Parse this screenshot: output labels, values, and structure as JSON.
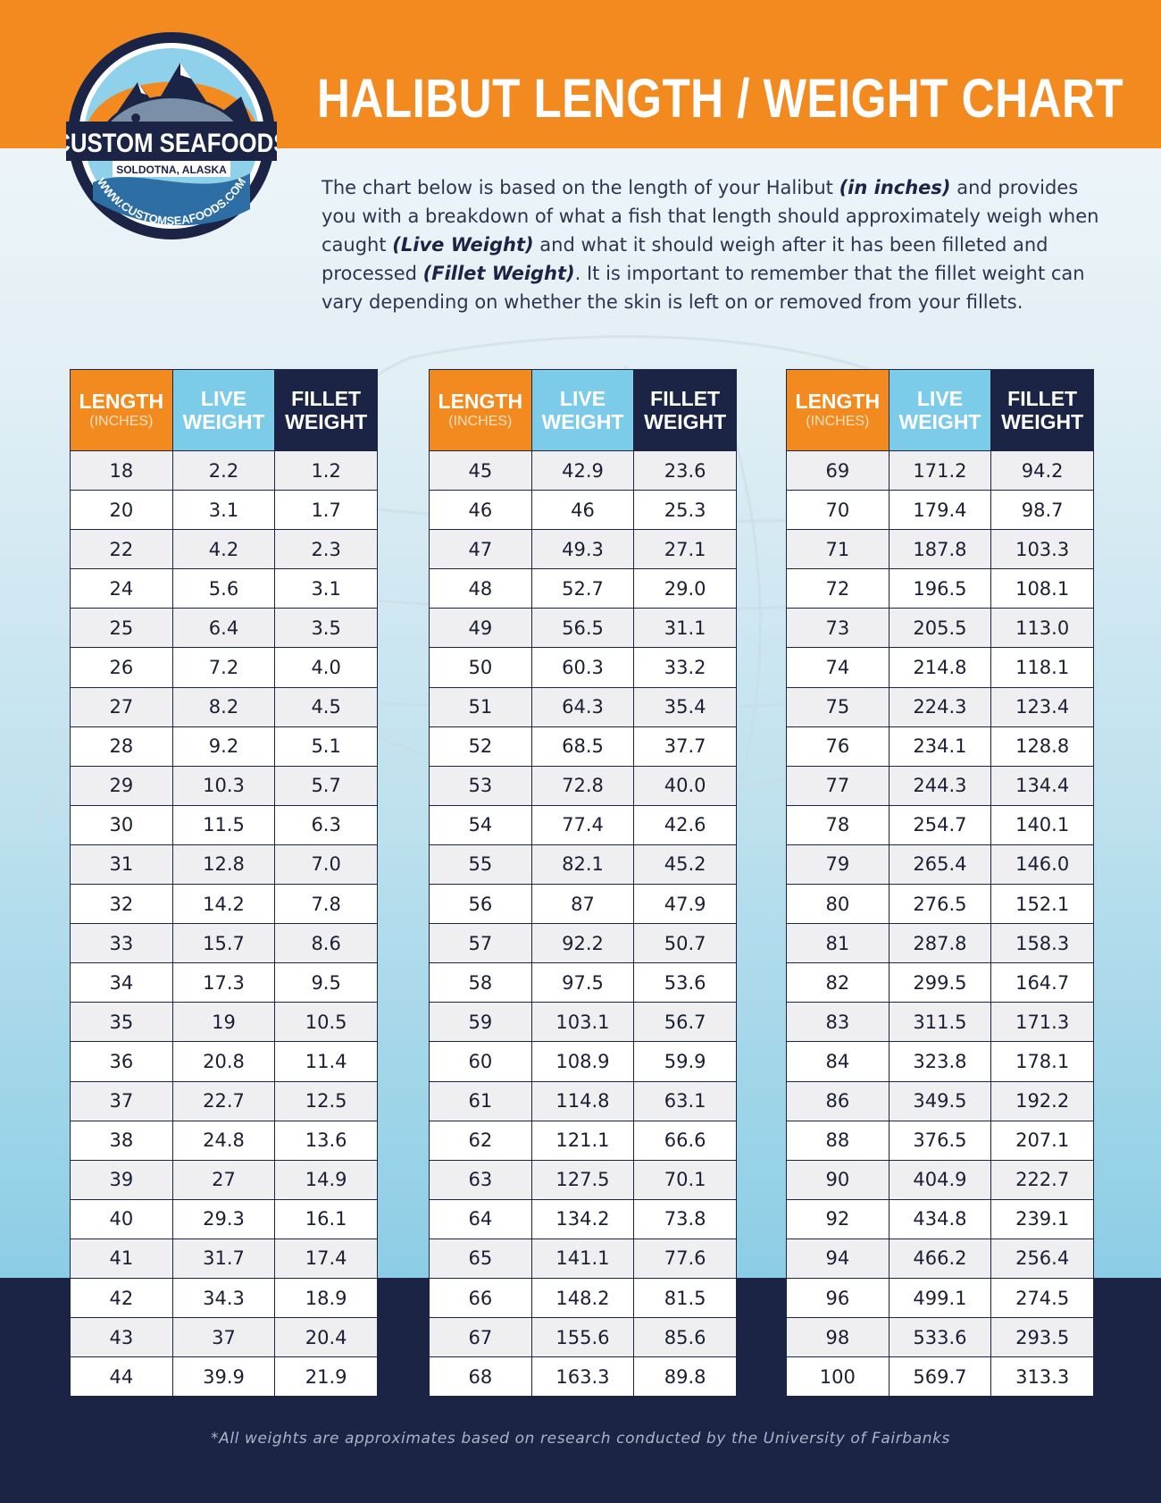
{
  "header": {
    "title": "HALIBUT LENGTH / WEIGHT CHART",
    "colors": {
      "orange": "#f28a1f",
      "navy": "#1c2445",
      "light_blue": "#7ccbe8"
    }
  },
  "logo": {
    "name": "CUSTOM SEAFOODS",
    "location": "SOLDOTNA, ALASKA",
    "website": "WWW.CUSTOMSEAFOODS.COM"
  },
  "intro": {
    "p1": "The chart below is based on the length of your Halibut ",
    "e1": "(in inches)",
    "p2": " and provides you with a breakdown of what a fish that length should approximately weigh when caught ",
    "e2": "(Live Weight)",
    "p3": " and what it should weigh after it has been filleted and processed ",
    "e3": "(Fillet Weight)",
    "p4": ". It is important to remember that the fillet weight can vary depending on whether the skin is left on or removed from your fillets."
  },
  "table_headers": {
    "length": "LENGTH",
    "length_unit": "(INCHES)",
    "live_1": "LIVE",
    "live_2": "WEIGHT",
    "fillet_1": "FILLET",
    "fillet_2": "WEIGHT"
  },
  "tables": [
    {
      "rows": [
        [
          "18",
          "2.2",
          "1.2"
        ],
        [
          "20",
          "3.1",
          "1.7"
        ],
        [
          "22",
          "4.2",
          "2.3"
        ],
        [
          "24",
          "5.6",
          "3.1"
        ],
        [
          "25",
          "6.4",
          "3.5"
        ],
        [
          "26",
          "7.2",
          "4.0"
        ],
        [
          "27",
          "8.2",
          "4.5"
        ],
        [
          "28",
          "9.2",
          "5.1"
        ],
        [
          "29",
          "10.3",
          "5.7"
        ],
        [
          "30",
          "11.5",
          "6.3"
        ],
        [
          "31",
          "12.8",
          "7.0"
        ],
        [
          "32",
          "14.2",
          "7.8"
        ],
        [
          "33",
          "15.7",
          "8.6"
        ],
        [
          "34",
          "17.3",
          "9.5"
        ],
        [
          "35",
          "19",
          "10.5"
        ],
        [
          "36",
          "20.8",
          "11.4"
        ],
        [
          "37",
          "22.7",
          "12.5"
        ],
        [
          "38",
          "24.8",
          "13.6"
        ],
        [
          "39",
          "27",
          "14.9"
        ],
        [
          "40",
          "29.3",
          "16.1"
        ],
        [
          "41",
          "31.7",
          "17.4"
        ],
        [
          "42",
          "34.3",
          "18.9"
        ],
        [
          "43",
          "37",
          "20.4"
        ],
        [
          "44",
          "39.9",
          "21.9"
        ]
      ]
    },
    {
      "rows": [
        [
          "45",
          "42.9",
          "23.6"
        ],
        [
          "46",
          "46",
          "25.3"
        ],
        [
          "47",
          "49.3",
          "27.1"
        ],
        [
          "48",
          "52.7",
          "29.0"
        ],
        [
          "49",
          "56.5",
          "31.1"
        ],
        [
          "50",
          "60.3",
          "33.2"
        ],
        [
          "51",
          "64.3",
          "35.4"
        ],
        [
          "52",
          "68.5",
          "37.7"
        ],
        [
          "53",
          "72.8",
          "40.0"
        ],
        [
          "54",
          "77.4",
          "42.6"
        ],
        [
          "55",
          "82.1",
          "45.2"
        ],
        [
          "56",
          "87",
          "47.9"
        ],
        [
          "57",
          "92.2",
          "50.7"
        ],
        [
          "58",
          "97.5",
          "53.6"
        ],
        [
          "59",
          "103.1",
          "56.7"
        ],
        [
          "60",
          "108.9",
          "59.9"
        ],
        [
          "61",
          "114.8",
          "63.1"
        ],
        [
          "62",
          "121.1",
          "66.6"
        ],
        [
          "63",
          "127.5",
          "70.1"
        ],
        [
          "64",
          "134.2",
          "73.8"
        ],
        [
          "65",
          "141.1",
          "77.6"
        ],
        [
          "66",
          "148.2",
          "81.5"
        ],
        [
          "67",
          "155.6",
          "85.6"
        ],
        [
          "68",
          "163.3",
          "89.8"
        ]
      ]
    },
    {
      "rows": [
        [
          "69",
          "171.2",
          "94.2"
        ],
        [
          "70",
          "179.4",
          "98.7"
        ],
        [
          "71",
          "187.8",
          "103.3"
        ],
        [
          "72",
          "196.5",
          "108.1"
        ],
        [
          "73",
          "205.5",
          "113.0"
        ],
        [
          "74",
          "214.8",
          "118.1"
        ],
        [
          "75",
          "224.3",
          "123.4"
        ],
        [
          "76",
          "234.1",
          "128.8"
        ],
        [
          "77",
          "244.3",
          "134.4"
        ],
        [
          "78",
          "254.7",
          "140.1"
        ],
        [
          "79",
          "265.4",
          "146.0"
        ],
        [
          "80",
          "276.5",
          "152.1"
        ],
        [
          "81",
          "287.8",
          "158.3"
        ],
        [
          "82",
          "299.5",
          "164.7"
        ],
        [
          "83",
          "311.5",
          "171.3"
        ],
        [
          "84",
          "323.8",
          "178.1"
        ],
        [
          "86",
          "349.5",
          "192.2"
        ],
        [
          "88",
          "376.5",
          "207.1"
        ],
        [
          "90",
          "404.9",
          "222.7"
        ],
        [
          "92",
          "434.8",
          "239.1"
        ],
        [
          "94",
          "466.2",
          "256.4"
        ],
        [
          "96",
          "499.1",
          "274.5"
        ],
        [
          "98",
          "533.6",
          "293.5"
        ],
        [
          "100",
          "569.7",
          "313.3"
        ]
      ]
    }
  ],
  "footnote": "*All weights are approximates based on research conducted by the University of Fairbanks"
}
